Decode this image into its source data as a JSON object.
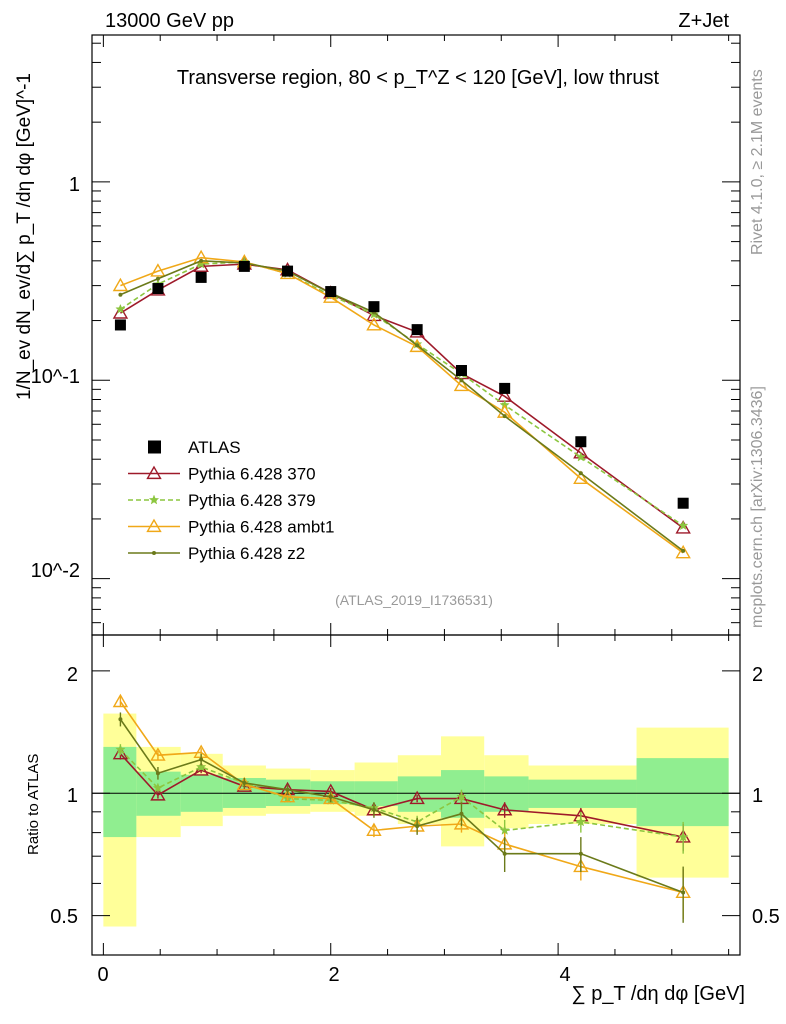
{
  "header": {
    "energy_label": "13000 GeV pp",
    "process_label": "Z+Jet",
    "plot_title": "Transverse region, 80 < p_T^Z < 120 [GeV], low thrust",
    "watermark": "(ATLAS_2019_I1736531)",
    "side_rivet": "Rivet 4.1.0, ≥ 2.1M events",
    "side_mcplots": "mcplots.cern.ch [arXiv:1306.3436]"
  },
  "axes": {
    "ylabel_top": "1/N_ev dN_ev/d∑ p_T /dη dφ  [GeV]^-1",
    "ylabel_bottom": "Ratio to ATLAS",
    "xlabel": "∑ p_T /dη dφ [GeV]",
    "x_ticks": [
      "0",
      "2",
      "4"
    ],
    "y_top_ticks": [
      "1",
      "10^-1",
      "10^-2"
    ],
    "y_bottom_ticks": [
      "2",
      "1",
      "0.5"
    ]
  },
  "legend": {
    "atlas": "ATLAS",
    "p370": "Pythia 6.428 370",
    "p379": "Pythia 6.428 379",
    "pambt1": "Pythia 6.428 ambt1",
    "pz2": "Pythia 6.428 z2"
  },
  "colors": {
    "data": "#000000",
    "p370": "#9e1a2a",
    "p379": "#8cc63f",
    "pambt1": "#f0a818",
    "pz2": "#6b7a1a",
    "band_inner": "#90ee90",
    "band_outer": "#ffff99"
  },
  "chart_data": {
    "type": "line",
    "xlim": [
      -0.1,
      5.6
    ],
    "ylim_top": [
      0.0052,
      5.5
    ],
    "ylim_bottom": [
      0.4,
      2.45
    ],
    "yscale_top": "log",
    "yscale_bottom": "log",
    "bin_edges": [
      0,
      0.29,
      0.68,
      1.05,
      1.43,
      1.82,
      2.21,
      2.59,
      2.97,
      3.35,
      3.74,
      4.69,
      5.5
    ],
    "x": [
      0.15,
      0.48,
      0.86,
      1.24,
      1.62,
      2.0,
      2.38,
      2.76,
      3.15,
      3.53,
      4.2,
      5.1
    ],
    "data": [
      0.19,
      0.29,
      0.33,
      0.375,
      0.355,
      0.28,
      0.235,
      0.18,
      0.112,
      0.091,
      0.049,
      0.024
    ],
    "series": [
      {
        "key": "p370",
        "name": "Pythia 6.428 370",
        "marker": "triangle-open",
        "dash": "",
        "values": [
          0.218,
          0.285,
          0.375,
          0.385,
          0.36,
          0.275,
          0.212,
          0.175,
          0.108,
          0.083,
          0.043,
          0.018
        ],
        "ratio": [
          1.25,
          0.99,
          1.14,
          1.04,
          1.02,
          1.01,
          0.91,
          0.97,
          0.97,
          0.91,
          0.88,
          0.78
        ],
        "ratio_err": [
          0.04,
          0.02,
          0.02,
          0.02,
          0.02,
          0.02,
          0.02,
          0.02,
          0.03,
          0.04,
          0.04,
          0.06
        ]
      },
      {
        "key": "p379",
        "name": "Pythia 6.428 379",
        "marker": "star",
        "dash": "5,3",
        "values": [
          0.228,
          0.305,
          0.385,
          0.395,
          0.345,
          0.268,
          0.215,
          0.152,
          0.108,
          0.075,
          0.041,
          0.0185
        ],
        "ratio": [
          1.28,
          1.03,
          1.16,
          1.06,
          0.97,
          0.96,
          0.92,
          0.85,
          0.98,
          0.81,
          0.85,
          0.78
        ],
        "ratio_err": [
          0.04,
          0.02,
          0.02,
          0.02,
          0.02,
          0.02,
          0.02,
          0.03,
          0.04,
          0.05,
          0.05,
          0.07
        ]
      },
      {
        "key": "pambt1",
        "name": "Pythia 6.428 ambt1",
        "marker": "triangle-open",
        "dash": "",
        "values": [
          0.3,
          0.355,
          0.415,
          0.395,
          0.345,
          0.262,
          0.19,
          0.148,
          0.094,
          0.069,
          0.032,
          0.0135
        ],
        "ratio": [
          1.68,
          1.24,
          1.26,
          1.05,
          0.98,
          0.97,
          0.81,
          0.83,
          0.84,
          0.75,
          0.66,
          0.57
        ],
        "ratio_err": [
          0.05,
          0.03,
          0.03,
          0.02,
          0.02,
          0.02,
          0.03,
          0.03,
          0.04,
          0.05,
          0.05,
          0.08
        ]
      },
      {
        "key": "pz2",
        "name": "Pythia 6.428 z2",
        "marker": "dot",
        "dash": "",
        "values": [
          0.27,
          0.325,
          0.4,
          0.39,
          0.355,
          0.275,
          0.22,
          0.15,
          0.1,
          0.066,
          0.034,
          0.0138
        ],
        "ratio": [
          1.52,
          1.12,
          1.21,
          1.06,
          1.02,
          0.98,
          0.91,
          0.83,
          0.89,
          0.71,
          0.71,
          0.57
        ],
        "ratio_err": [
          0.06,
          0.04,
          0.04,
          0.03,
          0.03,
          0.03,
          0.04,
          0.04,
          0.06,
          0.07,
          0.07,
          0.09
        ]
      }
    ],
    "band_inner": [
      [
        0.78,
        1.3
      ],
      [
        0.88,
        1.13
      ],
      [
        0.9,
        1.11
      ],
      [
        0.92,
        1.09
      ],
      [
        0.93,
        1.08
      ],
      [
        0.94,
        1.07
      ],
      [
        0.93,
        1.07
      ],
      [
        0.9,
        1.1
      ],
      [
        0.87,
        1.14
      ],
      [
        0.9,
        1.1
      ],
      [
        0.92,
        1.08
      ],
      [
        0.83,
        1.22
      ]
    ],
    "band_outer": [
      [
        0.47,
        1.57
      ],
      [
        0.78,
        1.3
      ],
      [
        0.83,
        1.25
      ],
      [
        0.88,
        1.17
      ],
      [
        0.89,
        1.15
      ],
      [
        0.9,
        1.14
      ],
      [
        0.88,
        1.19
      ],
      [
        0.84,
        1.24
      ],
      [
        0.74,
        1.38
      ],
      [
        0.82,
        1.24
      ],
      [
        0.84,
        1.17
      ],
      [
        0.62,
        1.45
      ]
    ]
  }
}
